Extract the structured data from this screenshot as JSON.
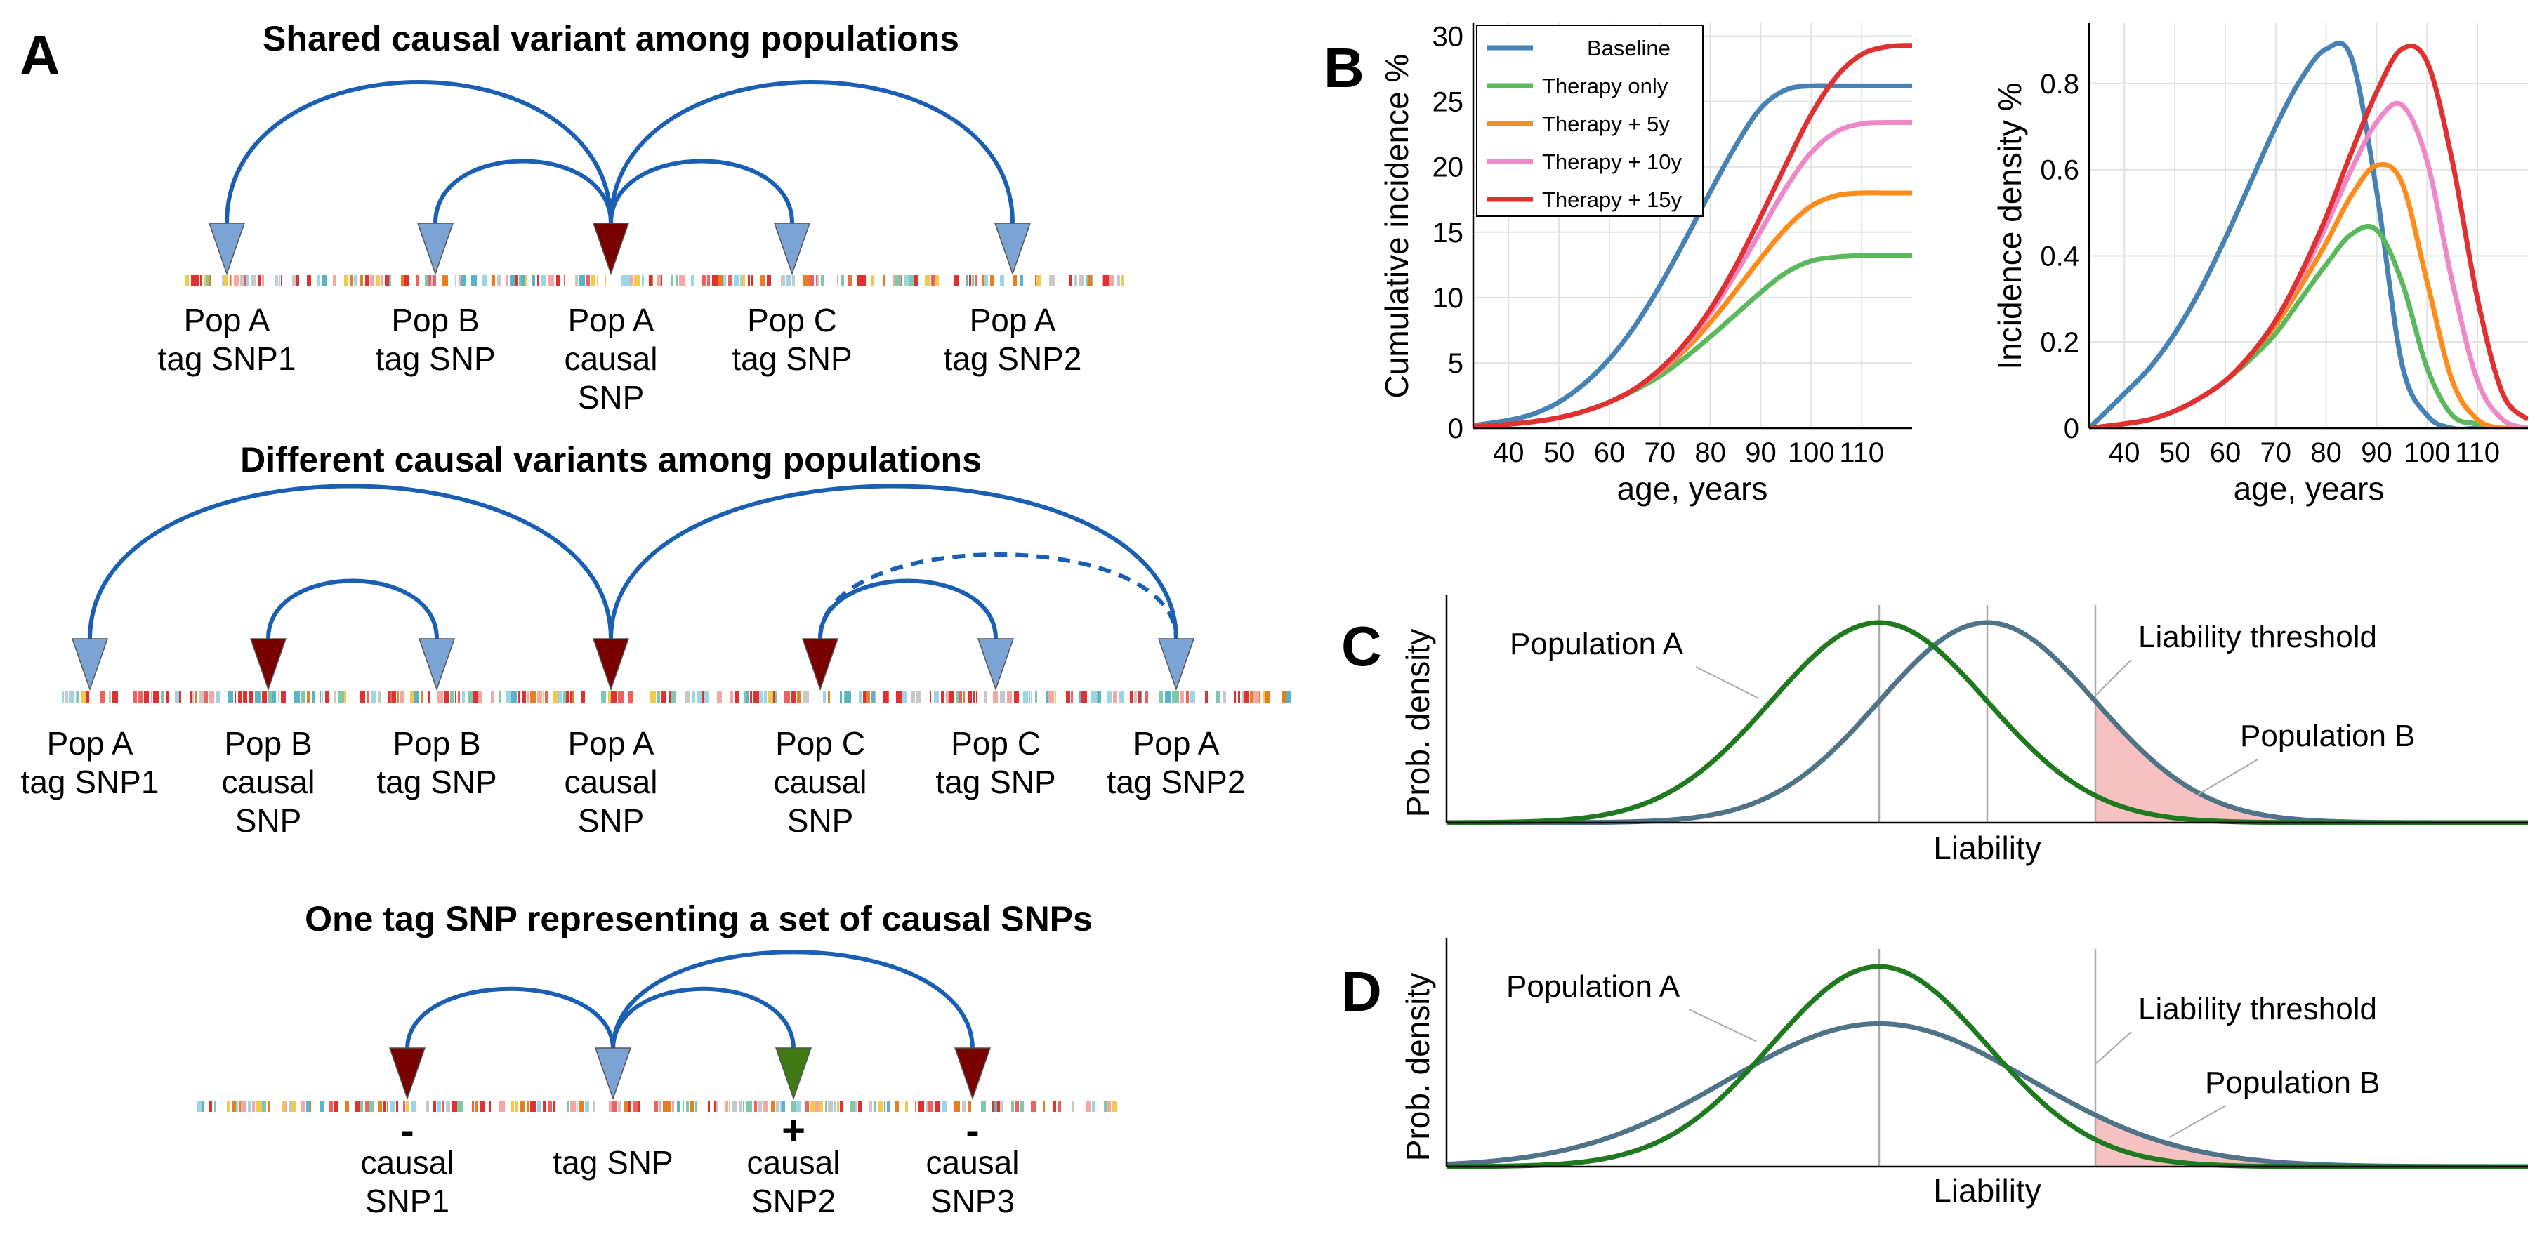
{
  "panel_labels": {
    "a": "A",
    "b": "B",
    "c": "C",
    "d": "D"
  },
  "colors": {
    "arc": "#1a5fb4",
    "tag_marker": "#7ba3d4",
    "causal_marker": "#7a0000",
    "positive_causal_marker": "#3f7a13",
    "pop_a_curve": "#1f7a1f",
    "pop_b_curve": "#4f7387",
    "threshold_fill": "#f7b6b6"
  },
  "panel_a": {
    "row1": {
      "title": "Shared causal variant among populations",
      "markers": [
        {
          "type": "tag",
          "lines": [
            "Pop A",
            "tag SNP1"
          ]
        },
        {
          "type": "tag",
          "lines": [
            "Pop B",
            "tag SNP"
          ]
        },
        {
          "type": "causal",
          "lines": [
            "Pop A",
            "causal",
            "SNP"
          ]
        },
        {
          "type": "tag",
          "lines": [
            "Pop C",
            "tag SNP"
          ]
        },
        {
          "type": "tag",
          "lines": [
            "Pop A",
            "tag SNP2"
          ]
        }
      ]
    },
    "row2": {
      "title": "Different causal variants among populations",
      "markers": [
        {
          "type": "tag",
          "lines": [
            "Pop A",
            "tag SNP1"
          ]
        },
        {
          "type": "causal",
          "lines": [
            "Pop B",
            "causal",
            "SNP"
          ]
        },
        {
          "type": "tag",
          "lines": [
            "Pop B",
            "tag SNP"
          ]
        },
        {
          "type": "causal",
          "lines": [
            "Pop A",
            "causal",
            "SNP"
          ]
        },
        {
          "type": "causal",
          "lines": [
            "Pop C",
            "causal",
            "SNP"
          ]
        },
        {
          "type": "tag",
          "lines": [
            "Pop C",
            "tag SNP"
          ]
        },
        {
          "type": "tag",
          "lines": [
            "Pop A",
            "tag SNP2"
          ]
        }
      ]
    },
    "row3": {
      "title": "One tag SNP representing a set of causal SNPs",
      "markers": [
        {
          "type": "causal",
          "sign": "-",
          "lines": [
            "causal",
            "SNP1"
          ]
        },
        {
          "type": "tag",
          "lines": [
            "tag SNP"
          ]
        },
        {
          "type": "positive",
          "sign": "+",
          "lines": [
            "causal",
            "SNP2"
          ]
        },
        {
          "type": "causal",
          "sign": "-",
          "lines": [
            "causal",
            "SNP3"
          ]
        }
      ]
    }
  },
  "chart_data": [
    {
      "id": "B-left",
      "type": "line",
      "xlabel": "age, years",
      "ylabel": "Cumulative incidence %",
      "xlim": [
        33,
        120
      ],
      "ylim": [
        0,
        31
      ],
      "xticks": [
        "40",
        "50",
        "60",
        "70",
        "80",
        "90",
        "100",
        "110"
      ],
      "yticks": [
        "0",
        "5",
        "10",
        "15",
        "20",
        "25",
        "30"
      ],
      "grid": true,
      "legend_position": "top-left",
      "x": [
        33,
        40,
        45,
        50,
        55,
        60,
        65,
        70,
        75,
        80,
        85,
        90,
        95,
        100,
        105,
        110,
        115,
        120
      ],
      "series": [
        {
          "name": "Baseline",
          "color": "#4682b4",
          "values": [
            0.2,
            0.6,
            1.1,
            2.0,
            3.4,
            5.3,
            7.8,
            10.9,
            14.4,
            18.1,
            21.6,
            24.5,
            25.9,
            26.2,
            26.2,
            26.2,
            26.2,
            26.2
          ]
        },
        {
          "name": "Therapy only",
          "color": "#5cb85c",
          "values": [
            0.1,
            0.3,
            0.5,
            0.8,
            1.3,
            2.0,
            2.9,
            4.0,
            5.4,
            7.0,
            8.7,
            10.4,
            11.9,
            12.8,
            13.1,
            13.2,
            13.2,
            13.2
          ]
        },
        {
          "name": "Therapy + 5y",
          "color": "#ff8c1a",
          "values": [
            0.1,
            0.3,
            0.5,
            0.8,
            1.3,
            2.0,
            3.0,
            4.3,
            6.0,
            8.1,
            10.5,
            13.0,
            15.3,
            17.0,
            17.8,
            18.0,
            18.0,
            18.0
          ]
        },
        {
          "name": "Therapy + 10y",
          "color": "#ee88c8",
          "values": [
            0.1,
            0.3,
            0.5,
            0.8,
            1.3,
            2.0,
            3.0,
            4.4,
            6.3,
            8.8,
            11.8,
            15.1,
            18.4,
            21.1,
            22.7,
            23.3,
            23.4,
            23.4
          ]
        },
        {
          "name": "Therapy + 15y",
          "color": "#e03030",
          "values": [
            0.1,
            0.3,
            0.5,
            0.8,
            1.3,
            2.0,
            3.0,
            4.5,
            6.5,
            9.1,
            12.4,
            16.2,
            20.2,
            24.0,
            26.9,
            28.6,
            29.2,
            29.3
          ]
        }
      ]
    },
    {
      "id": "B-right",
      "type": "line",
      "xlabel": "age, years",
      "ylabel": "Incidence density %",
      "xlim": [
        33,
        120
      ],
      "ylim": [
        0,
        0.94
      ],
      "xticks": [
        "40",
        "50",
        "60",
        "70",
        "80",
        "90",
        "100",
        "110"
      ],
      "yticks": [
        "0",
        "0.2",
        "0.4",
        "0.6",
        "0.8"
      ],
      "grid": true,
      "x": [
        33,
        40,
        45,
        50,
        55,
        60,
        65,
        70,
        75,
        80,
        85,
        90,
        95,
        100,
        105,
        110,
        115,
        120
      ],
      "series": [
        {
          "name": "Baseline",
          "color": "#4682b4",
          "values": [
            0.0,
            0.08,
            0.14,
            0.22,
            0.32,
            0.44,
            0.57,
            0.7,
            0.81,
            0.88,
            0.86,
            0.55,
            0.15,
            0.03,
            0.0,
            0.0,
            0.0,
            0.0
          ]
        },
        {
          "name": "Therapy only",
          "color": "#5cb85c",
          "values": [
            0.0,
            0.01,
            0.02,
            0.04,
            0.07,
            0.11,
            0.16,
            0.22,
            0.3,
            0.38,
            0.45,
            0.46,
            0.34,
            0.14,
            0.03,
            0.01,
            0.0,
            0.0
          ]
        },
        {
          "name": "Therapy + 5y",
          "color": "#ff8c1a",
          "values": [
            0.0,
            0.01,
            0.02,
            0.04,
            0.07,
            0.11,
            0.17,
            0.24,
            0.33,
            0.43,
            0.54,
            0.61,
            0.57,
            0.34,
            0.11,
            0.02,
            0.0,
            0.0
          ]
        },
        {
          "name": "Therapy + 10y",
          "color": "#ee88c8",
          "values": [
            0.0,
            0.01,
            0.02,
            0.04,
            0.07,
            0.11,
            0.17,
            0.25,
            0.35,
            0.47,
            0.6,
            0.71,
            0.75,
            0.62,
            0.34,
            0.11,
            0.02,
            0.0
          ]
        },
        {
          "name": "Therapy + 15y",
          "color": "#e03030",
          "values": [
            0.0,
            0.01,
            0.02,
            0.04,
            0.07,
            0.11,
            0.17,
            0.25,
            0.36,
            0.49,
            0.64,
            0.78,
            0.88,
            0.85,
            0.62,
            0.3,
            0.08,
            0.02
          ]
        }
      ]
    },
    {
      "id": "C",
      "type": "line",
      "xlabel": "Liability",
      "ylabel": "Prob.  density",
      "xlim": [
        -4,
        6
      ],
      "series": [
        {
          "name": "Population A",
          "color": "#1f7a1f",
          "mean": 0,
          "sd": 1
        },
        {
          "name": "Population B",
          "color": "#4f7387",
          "mean": 1,
          "sd": 1
        }
      ],
      "threshold": 2,
      "threshold_label": "Liability threshold",
      "annotations": [
        "Population A",
        "Liability threshold",
        "Population B"
      ]
    },
    {
      "id": "D",
      "type": "line",
      "xlabel": "Liability",
      "ylabel": "Prob.  density",
      "xlim": [
        -4,
        6
      ],
      "series": [
        {
          "name": "Population A",
          "color": "#1f7a1f",
          "mean": 0,
          "sd": 1
        },
        {
          "name": "Population B",
          "color": "#4f7387",
          "mean": 0,
          "sd": 1.4
        }
      ],
      "threshold": 2,
      "threshold_label": "Liability threshold",
      "annotations": [
        "Population A",
        "Liability threshold",
        "Population B"
      ]
    }
  ]
}
